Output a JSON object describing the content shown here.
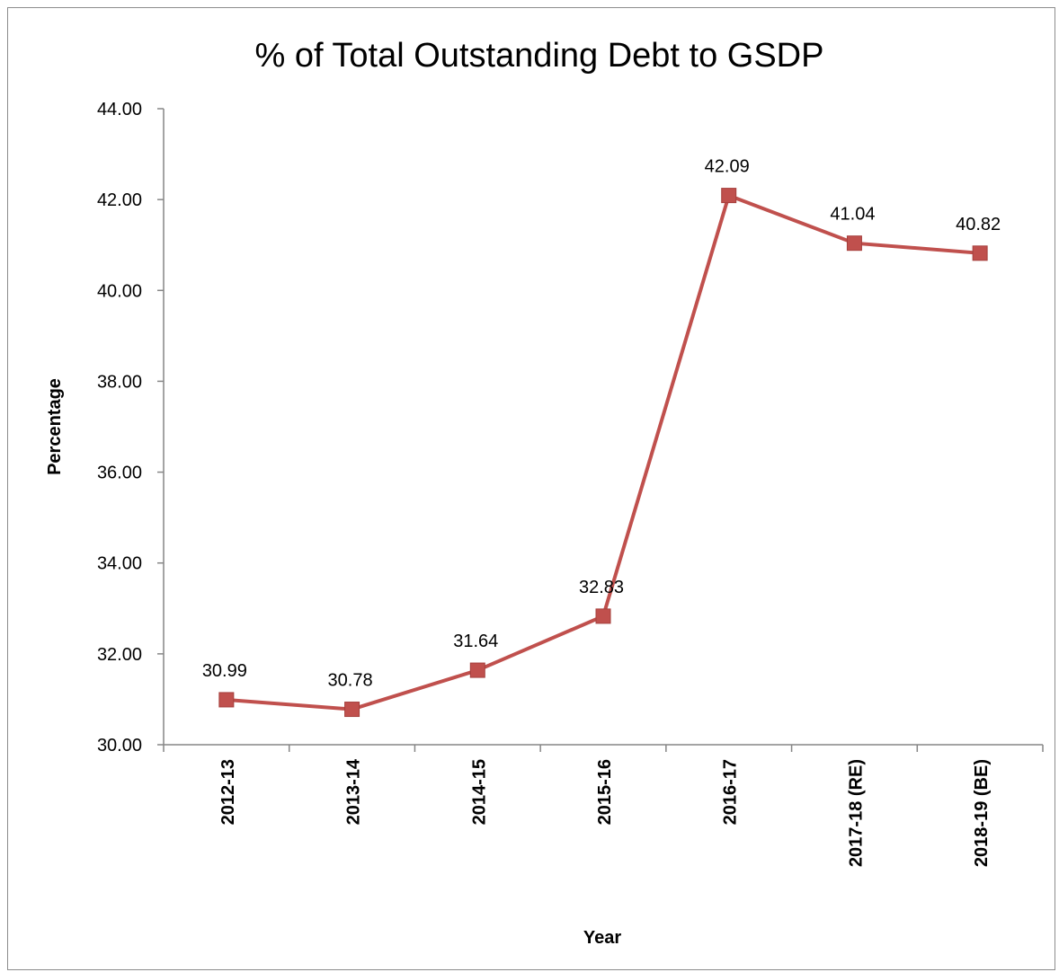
{
  "chart_data": {
    "type": "line",
    "title": "% of Total Outstanding Debt to GSDP",
    "xlabel": "Year",
    "ylabel": "Percentage",
    "categories": [
      "2012-13",
      "2013-14",
      "2014-15",
      "2015-16",
      "2016-17",
      "2017-18 (RE)",
      "2018-19 (BE)"
    ],
    "series": [
      {
        "values": [
          30.99,
          30.78,
          31.64,
          32.83,
          42.09,
          41.04,
          40.82
        ],
        "data_labels": [
          "30.99",
          "30.78",
          "31.64",
          "32.83",
          "42.09",
          "41.04",
          "40.82"
        ],
        "color": "#c0504d",
        "marker": "square"
      }
    ],
    "ylim": [
      30,
      44
    ],
    "yticks": [
      "30.00",
      "32.00",
      "34.00",
      "36.00",
      "38.00",
      "40.00",
      "42.00",
      "44.00"
    ],
    "grid": false,
    "legend": "none"
  }
}
